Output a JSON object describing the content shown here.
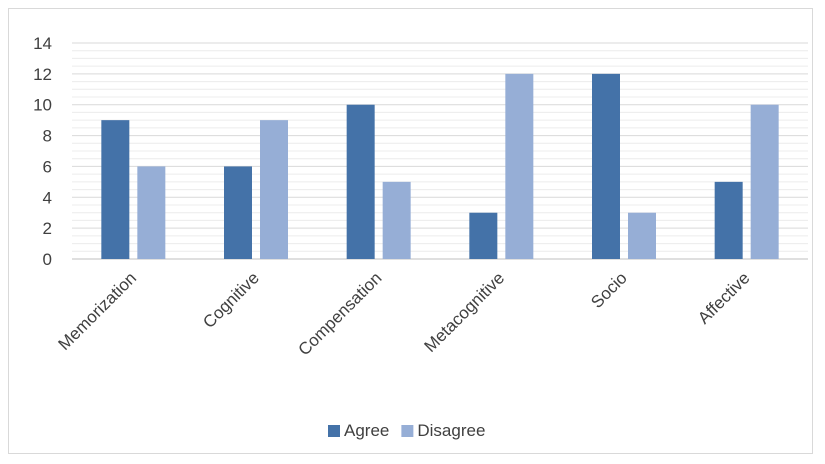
{
  "chart_data": {
    "type": "bar",
    "title": "",
    "xlabel": "",
    "ylabel": "",
    "categories": [
      "Memorization",
      "Cognitive",
      "Compensation",
      "Metacognitive",
      "Socio",
      "Affective"
    ],
    "series": [
      {
        "name": "Agree",
        "values": [
          9,
          6,
          10,
          3,
          12,
          5
        ],
        "color": "#4472a8"
      },
      {
        "name": "Disagree",
        "values": [
          6,
          9,
          5,
          12,
          3,
          10
        ],
        "color": "#96aed6"
      }
    ],
    "ylim": [
      0,
      14
    ],
    "yticks": [
      0,
      2,
      4,
      6,
      8,
      10,
      12,
      14
    ],
    "minor_gridlines": true,
    "legend_position": "bottom",
    "colors": {
      "gridline": "#d9d9d9",
      "axis": "#bfbfbf",
      "text": "#404040"
    }
  }
}
